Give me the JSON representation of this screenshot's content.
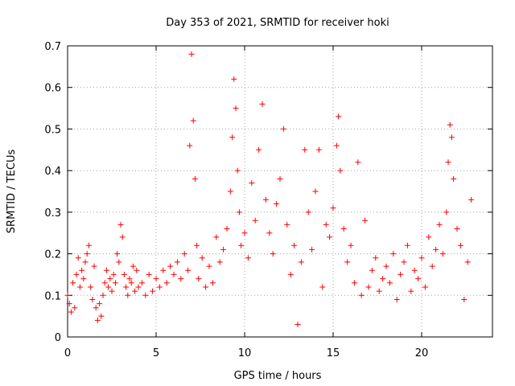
{
  "chart_data": {
    "type": "scatter",
    "title": "Day 353 of 2021, SRMTID for receiver hoki",
    "xlabel": "GPS time / hours",
    "ylabel": "SRMTID / TECUs",
    "xlim": [
      0,
      24
    ],
    "ylim": [
      0,
      0.7
    ],
    "xticks": [
      "0",
      "5",
      "10",
      "15",
      "20"
    ],
    "yticks": [
      "0",
      "0.1",
      "0.2",
      "0.3",
      "0.4",
      "0.5",
      "0.6",
      "0.7"
    ],
    "grid": true,
    "marker": "+",
    "marker_color": "#ff0000",
    "series": [
      {
        "name": "SRMTID",
        "points": [
          [
            0.0,
            0.1
          ],
          [
            0.1,
            0.08
          ],
          [
            0.2,
            0.06
          ],
          [
            0.3,
            0.13
          ],
          [
            0.4,
            0.07
          ],
          [
            0.5,
            0.15
          ],
          [
            0.6,
            0.19
          ],
          [
            0.7,
            0.12
          ],
          [
            0.8,
            0.16
          ],
          [
            0.9,
            0.14
          ],
          [
            1.0,
            0.18
          ],
          [
            1.1,
            0.2
          ],
          [
            1.2,
            0.22
          ],
          [
            1.3,
            0.12
          ],
          [
            1.4,
            0.09
          ],
          [
            1.5,
            0.17
          ],
          [
            1.6,
            0.07
          ],
          [
            1.7,
            0.04
          ],
          [
            1.8,
            0.08
          ],
          [
            1.9,
            0.05
          ],
          [
            2.0,
            0.1
          ],
          [
            2.1,
            0.13
          ],
          [
            2.2,
            0.16
          ],
          [
            2.3,
            0.12
          ],
          [
            2.4,
            0.14
          ],
          [
            2.5,
            0.11
          ],
          [
            2.6,
            0.15
          ],
          [
            2.7,
            0.13
          ],
          [
            2.8,
            0.2
          ],
          [
            2.9,
            0.18
          ],
          [
            3.0,
            0.27
          ],
          [
            3.1,
            0.24
          ],
          [
            3.2,
            0.15
          ],
          [
            3.3,
            0.12
          ],
          [
            3.4,
            0.1
          ],
          [
            3.5,
            0.14
          ],
          [
            3.6,
            0.13
          ],
          [
            3.7,
            0.17
          ],
          [
            3.8,
            0.11
          ],
          [
            3.9,
            0.16
          ],
          [
            4.0,
            0.12
          ],
          [
            4.2,
            0.13
          ],
          [
            4.4,
            0.1
          ],
          [
            4.6,
            0.15
          ],
          [
            4.8,
            0.11
          ],
          [
            5.0,
            0.14
          ],
          [
            5.2,
            0.12
          ],
          [
            5.4,
            0.16
          ],
          [
            5.6,
            0.13
          ],
          [
            5.8,
            0.17
          ],
          [
            6.0,
            0.15
          ],
          [
            6.2,
            0.18
          ],
          [
            6.4,
            0.14
          ],
          [
            6.6,
            0.2
          ],
          [
            6.8,
            0.16
          ],
          [
            6.9,
            0.46
          ],
          [
            7.0,
            0.68
          ],
          [
            7.1,
            0.52
          ],
          [
            7.2,
            0.38
          ],
          [
            7.3,
            0.22
          ],
          [
            7.4,
            0.14
          ],
          [
            7.6,
            0.19
          ],
          [
            7.8,
            0.12
          ],
          [
            8.0,
            0.17
          ],
          [
            8.2,
            0.13
          ],
          [
            8.4,
            0.24
          ],
          [
            8.6,
            0.18
          ],
          [
            8.8,
            0.21
          ],
          [
            9.0,
            0.26
          ],
          [
            9.2,
            0.35
          ],
          [
            9.3,
            0.48
          ],
          [
            9.4,
            0.62
          ],
          [
            9.5,
            0.55
          ],
          [
            9.6,
            0.4
          ],
          [
            9.7,
            0.3
          ],
          [
            9.8,
            0.22
          ],
          [
            10.0,
            0.25
          ],
          [
            10.2,
            0.19
          ],
          [
            10.4,
            0.37
          ],
          [
            10.6,
            0.28
          ],
          [
            10.8,
            0.45
          ],
          [
            11.0,
            0.56
          ],
          [
            11.2,
            0.33
          ],
          [
            11.4,
            0.25
          ],
          [
            11.6,
            0.2
          ],
          [
            11.8,
            0.32
          ],
          [
            12.0,
            0.38
          ],
          [
            12.2,
            0.5
          ],
          [
            12.4,
            0.27
          ],
          [
            12.6,
            0.15
          ],
          [
            12.8,
            0.22
          ],
          [
            13.0,
            0.03
          ],
          [
            13.2,
            0.18
          ],
          [
            13.4,
            0.45
          ],
          [
            13.6,
            0.3
          ],
          [
            13.8,
            0.21
          ],
          [
            14.0,
            0.35
          ],
          [
            14.2,
            0.45
          ],
          [
            14.4,
            0.12
          ],
          [
            14.6,
            0.27
          ],
          [
            14.8,
            0.24
          ],
          [
            15.0,
            0.31
          ],
          [
            15.2,
            0.46
          ],
          [
            15.3,
            0.53
          ],
          [
            15.4,
            0.4
          ],
          [
            15.6,
            0.26
          ],
          [
            15.8,
            0.18
          ],
          [
            16.0,
            0.22
          ],
          [
            16.2,
            0.13
          ],
          [
            16.4,
            0.42
          ],
          [
            16.6,
            0.1
          ],
          [
            16.8,
            0.28
          ],
          [
            17.0,
            0.12
          ],
          [
            17.2,
            0.16
          ],
          [
            17.4,
            0.19
          ],
          [
            17.6,
            0.11
          ],
          [
            17.8,
            0.14
          ],
          [
            18.0,
            0.17
          ],
          [
            18.2,
            0.13
          ],
          [
            18.4,
            0.2
          ],
          [
            18.6,
            0.09
          ],
          [
            18.8,
            0.15
          ],
          [
            19.0,
            0.18
          ],
          [
            19.2,
            0.22
          ],
          [
            19.4,
            0.11
          ],
          [
            19.6,
            0.16
          ],
          [
            19.8,
            0.14
          ],
          [
            20.0,
            0.19
          ],
          [
            20.2,
            0.12
          ],
          [
            20.4,
            0.24
          ],
          [
            20.6,
            0.17
          ],
          [
            20.8,
            0.21
          ],
          [
            21.0,
            0.27
          ],
          [
            21.2,
            0.2
          ],
          [
            21.4,
            0.3
          ],
          [
            21.5,
            0.42
          ],
          [
            21.6,
            0.51
          ],
          [
            21.7,
            0.48
          ],
          [
            21.8,
            0.38
          ],
          [
            22.0,
            0.26
          ],
          [
            22.2,
            0.22
          ],
          [
            22.4,
            0.09
          ],
          [
            22.6,
            0.18
          ],
          [
            22.8,
            0.33
          ]
        ]
      }
    ]
  }
}
